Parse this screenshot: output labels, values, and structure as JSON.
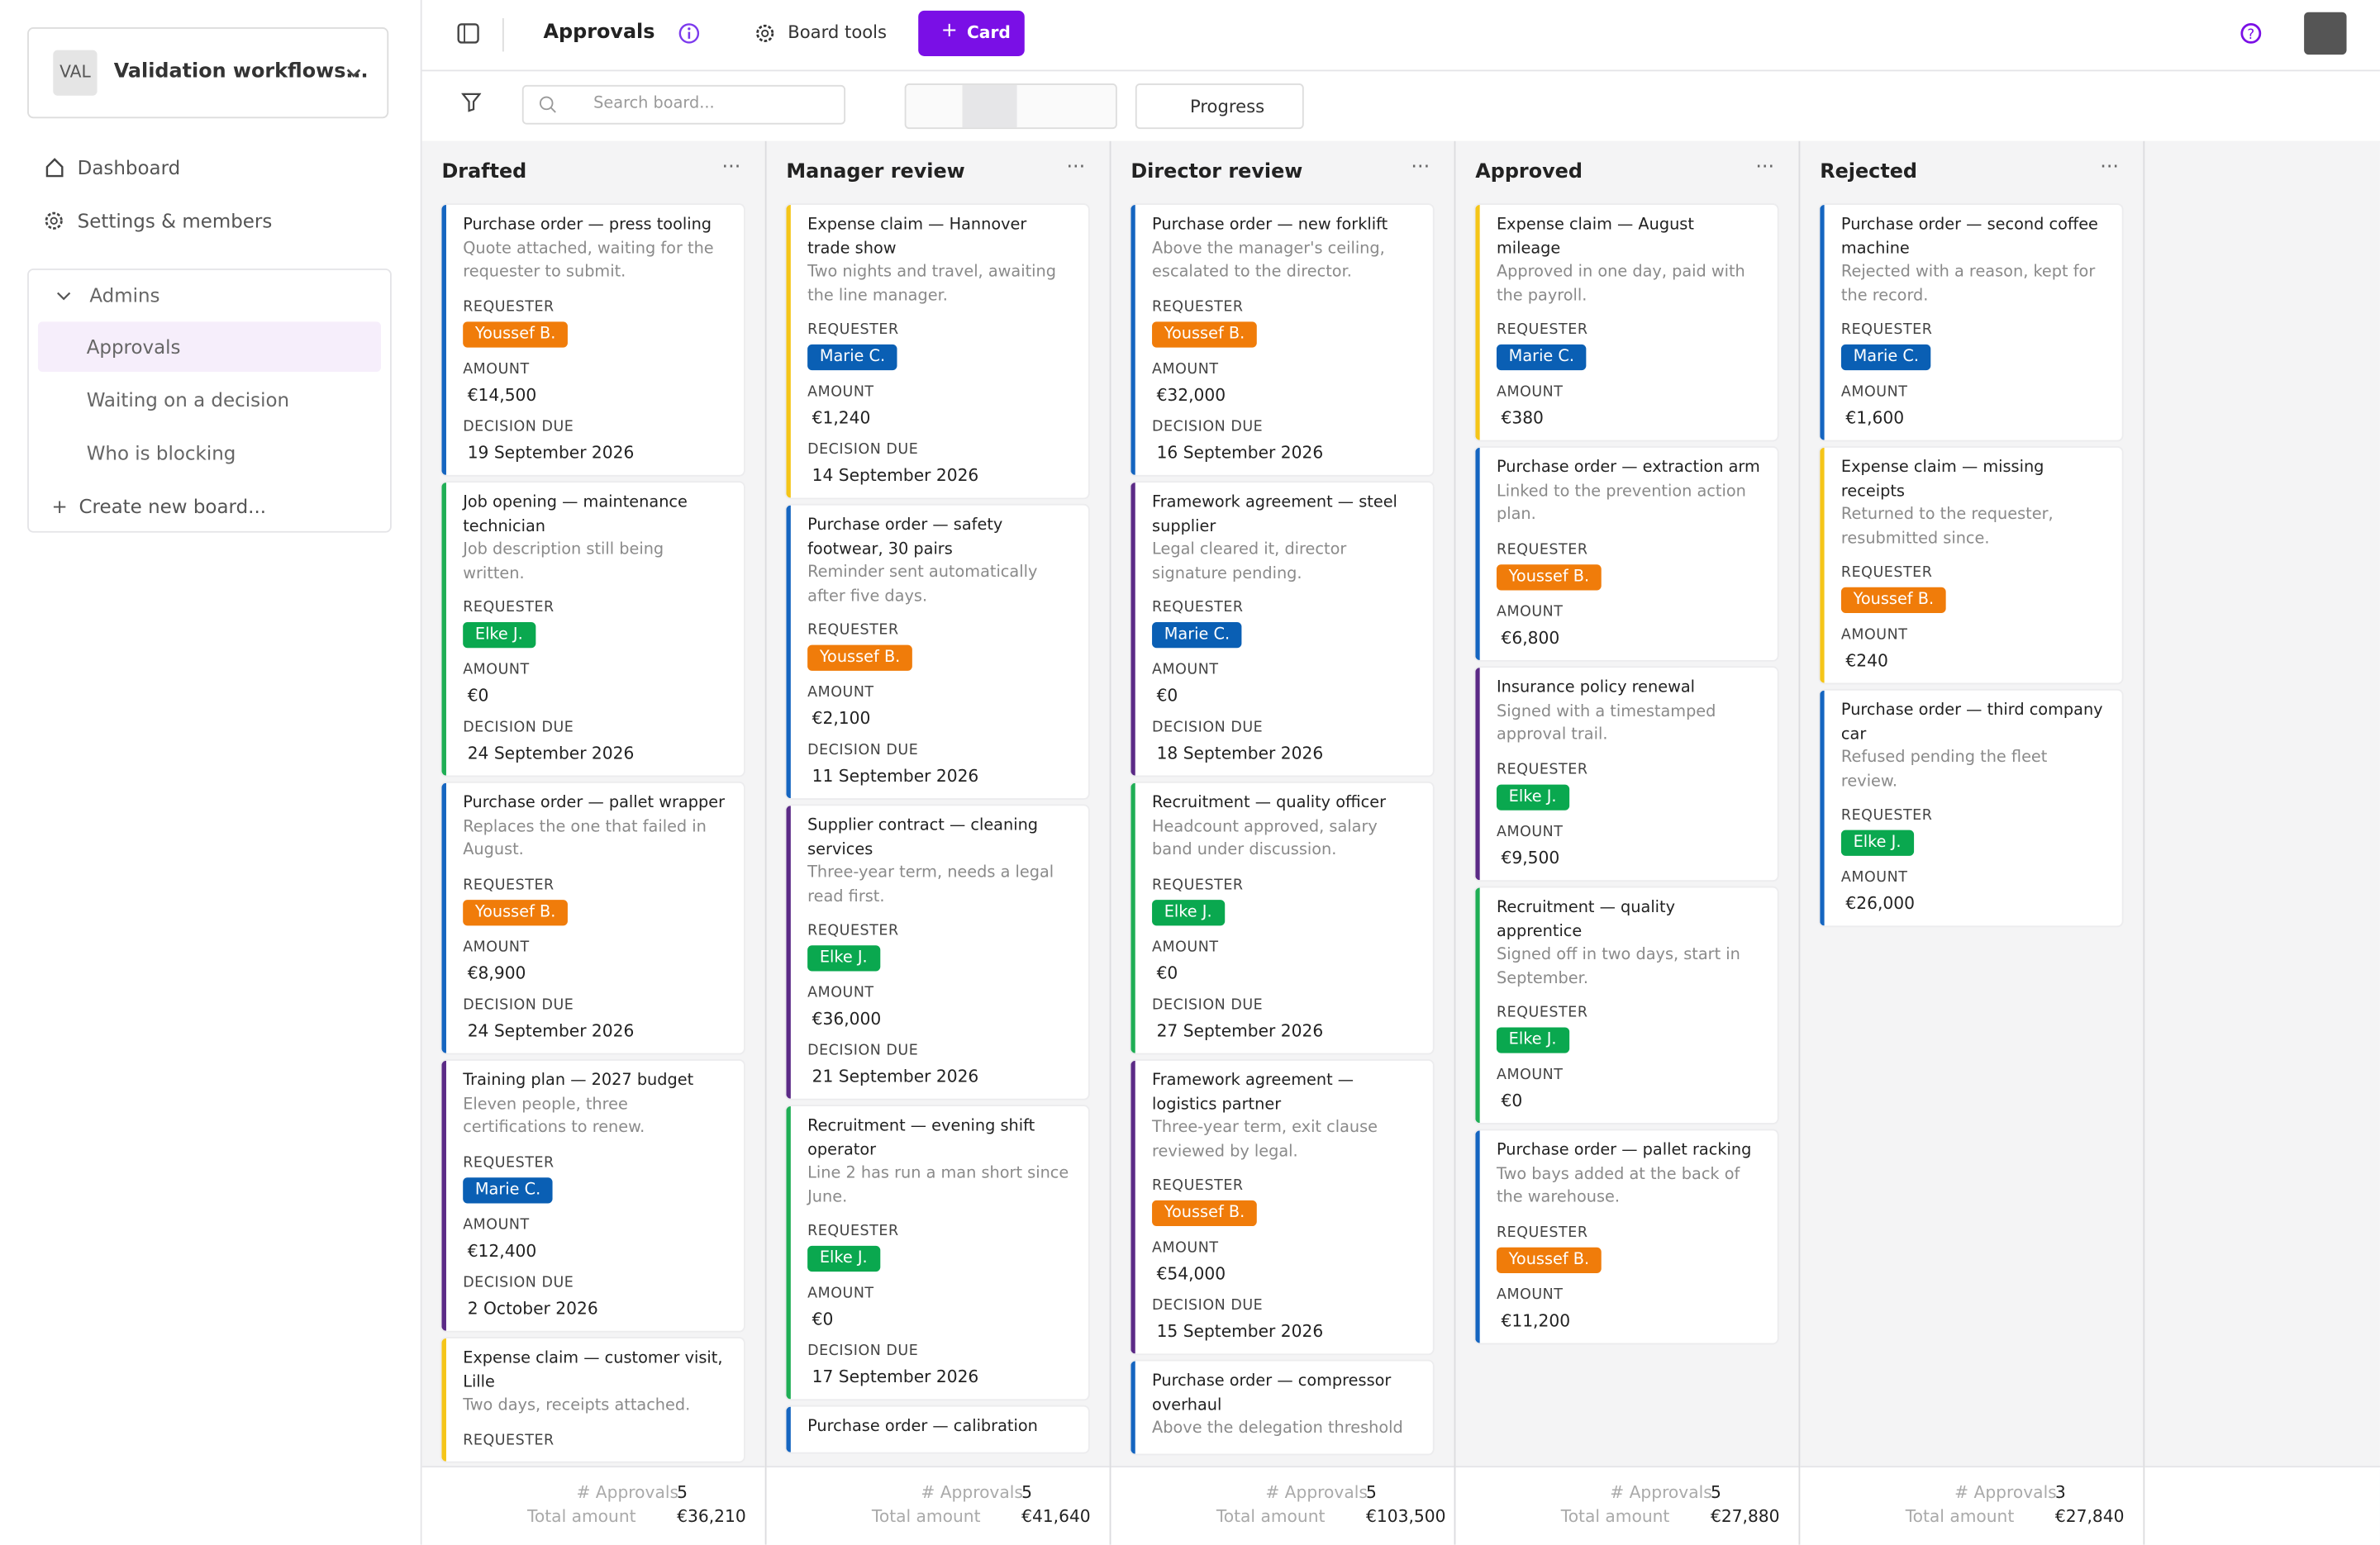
{
  "workspace": {
    "badge": "VAL",
    "name": "Validation workflows..."
  },
  "nav": [
    "Dashboard",
    "Settings & members"
  ],
  "group": {
    "title": "Admins",
    "items": [
      "Approvals",
      "Waiting on a decision",
      "Who is blocking"
    ],
    "create": "Create new board..."
  },
  "header": {
    "title": "Approvals",
    "board_tools": "Board tools",
    "add_card": "Card"
  },
  "toolbar": {
    "search_placeholder": "Search board...",
    "group_by": "Progress"
  },
  "columns": [
    {
      "name": "Drafted",
      "footer": {
        "count_label": "# Approvals",
        "count": "5",
        "total_label": "Total amount",
        "total": "€36,210"
      },
      "cards": [
        {
          "title": "Purchase order — press tooling",
          "description": "Quote attached, waiting for the requester to submit.",
          "accent": "#1565c0",
          "fields": [
            {
              "label": "REQUESTER",
              "person": "Youssef B.",
              "color": "#f07c0a"
            },
            {
              "label": "AMOUNT",
              "value": "€14,500"
            },
            {
              "label": "DECISION DUE",
              "value": "19 September 2026"
            }
          ]
        },
        {
          "title": "Job opening — maintenance technician",
          "description": "Job description still being written.",
          "accent": "#1fae55",
          "fields": [
            {
              "label": "REQUESTER",
              "person": "Elke J.",
              "color": "#0aa84f"
            },
            {
              "label": "AMOUNT",
              "value": "€0"
            },
            {
              "label": "DECISION DUE",
              "value": "24 September 2026"
            }
          ]
        },
        {
          "title": "Purchase order — pallet wrapper",
          "description": "Replaces the one that failed in August.",
          "accent": "#1565c0",
          "fields": [
            {
              "label": "REQUESTER",
              "person": "Youssef B.",
              "color": "#f07c0a"
            },
            {
              "label": "AMOUNT",
              "value": "€8,900"
            },
            {
              "label": "DECISION DUE",
              "value": "24 September 2026"
            }
          ]
        },
        {
          "title": "Training plan — 2027 budget",
          "description": "Eleven people, three certifications to renew.",
          "accent": "#5b2a86",
          "fields": [
            {
              "label": "REQUESTER",
              "person": "Marie C.",
              "color": "#0a5fb4"
            },
            {
              "label": "AMOUNT",
              "value": "€12,400"
            },
            {
              "label": "DECISION DUE",
              "value": "2 October 2026"
            }
          ]
        },
        {
          "title": "Expense claim — customer visit, Lille",
          "description": "Two days, receipts attached.",
          "accent": "#f5c518",
          "fields": [
            {
              "label": "REQUESTER"
            }
          ]
        }
      ]
    },
    {
      "name": "Manager review",
      "footer": {
        "count_label": "# Approvals",
        "count": "5",
        "total_label": "Total amount",
        "total": "€41,640"
      },
      "cards": [
        {
          "title": "Expense claim — Hannover trade show",
          "description": "Two nights and travel, awaiting the line manager.",
          "accent": "#f5c518",
          "fields": [
            {
              "label": "REQUESTER",
              "person": "Marie C.",
              "color": "#0a5fb4"
            },
            {
              "label": "AMOUNT",
              "value": "€1,240"
            },
            {
              "label": "DECISION DUE",
              "value": "14 September 2026"
            }
          ]
        },
        {
          "title": "Purchase order — safety footwear, 30 pairs",
          "description": "Reminder sent automatically after five days.",
          "accent": "#1565c0",
          "fields": [
            {
              "label": "REQUESTER",
              "person": "Youssef B.",
              "color": "#f07c0a"
            },
            {
              "label": "AMOUNT",
              "value": "€2,100"
            },
            {
              "label": "DECISION DUE",
              "value": "11 September 2026"
            }
          ]
        },
        {
          "title": "Supplier contract — cleaning services",
          "description": "Three-year term, needs a legal read first.",
          "accent": "#5b2a86",
          "fields": [
            {
              "label": "REQUESTER",
              "person": "Elke J.",
              "color": "#0aa84f"
            },
            {
              "label": "AMOUNT",
              "value": "€36,000"
            },
            {
              "label": "DECISION DUE",
              "value": "21 September 2026"
            }
          ]
        },
        {
          "title": "Recruitment — evening shift operator",
          "description": "Line 2 has run a man short since June.",
          "accent": "#1fae55",
          "fields": [
            {
              "label": "REQUESTER",
              "person": "Elke J.",
              "color": "#0aa84f"
            },
            {
              "label": "AMOUNT",
              "value": "€0"
            },
            {
              "label": "DECISION DUE",
              "value": "17 September 2026"
            }
          ]
        },
        {
          "title": "Purchase order — calibration",
          "accent": "#1565c0",
          "fields": []
        }
      ]
    },
    {
      "name": "Director review",
      "footer": {
        "count_label": "# Approvals",
        "count": "5",
        "total_label": "Total amount",
        "total": "€103,500"
      },
      "cards": [
        {
          "title": "Purchase order — new forklift",
          "description": "Above the manager's ceiling, escalated to the director.",
          "accent": "#1565c0",
          "fields": [
            {
              "label": "REQUESTER",
              "person": "Youssef B.",
              "color": "#f07c0a"
            },
            {
              "label": "AMOUNT",
              "value": "€32,000"
            },
            {
              "label": "DECISION DUE",
              "value": "16 September 2026"
            }
          ]
        },
        {
          "title": "Framework agreement — steel supplier",
          "description": "Legal cleared it, director signature pending.",
          "accent": "#5b2a86",
          "fields": [
            {
              "label": "REQUESTER",
              "person": "Marie C.",
              "color": "#0a5fb4"
            },
            {
              "label": "AMOUNT",
              "value": "€0"
            },
            {
              "label": "DECISION DUE",
              "value": "18 September 2026"
            }
          ]
        },
        {
          "title": "Recruitment — quality officer",
          "description": "Headcount approved, salary band under discussion.",
          "accent": "#1fae55",
          "fields": [
            {
              "label": "REQUESTER",
              "person": "Elke J.",
              "color": "#0aa84f"
            },
            {
              "label": "AMOUNT",
              "value": "€0"
            },
            {
              "label": "DECISION DUE",
              "value": "27 September 2026"
            }
          ]
        },
        {
          "title": "Framework agreement — logistics partner",
          "description": "Three-year term, exit clause reviewed by legal.",
          "accent": "#5b2a86",
          "fields": [
            {
              "label": "REQUESTER",
              "person": "Youssef B.",
              "color": "#f07c0a"
            },
            {
              "label": "AMOUNT",
              "value": "€54,000"
            },
            {
              "label": "DECISION DUE",
              "value": "15 September 2026"
            }
          ]
        },
        {
          "title": "Purchase order — compressor overhaul",
          "description": "Above the delegation threshold",
          "accent": "#1565c0",
          "fields": []
        }
      ]
    },
    {
      "name": "Approved",
      "footer": {
        "count_label": "# Approvals",
        "count": "5",
        "total_label": "Total amount",
        "total": "€27,880"
      },
      "cards": [
        {
          "title": "Expense claim — August mileage",
          "description": "Approved in one day, paid with the payroll.",
          "accent": "#f5c518",
          "fields": [
            {
              "label": "REQUESTER",
              "person": "Marie C.",
              "color": "#0a5fb4"
            },
            {
              "label": "AMOUNT",
              "value": "€380"
            }
          ]
        },
        {
          "title": "Purchase order — extraction arm",
          "description": "Linked to the prevention action plan.",
          "accent": "#1565c0",
          "fields": [
            {
              "label": "REQUESTER",
              "person": "Youssef B.",
              "color": "#f07c0a"
            },
            {
              "label": "AMOUNT",
              "value": "€6,800"
            }
          ]
        },
        {
          "title": "Insurance policy renewal",
          "description": "Signed with a timestamped approval trail.",
          "accent": "#5b2a86",
          "fields": [
            {
              "label": "REQUESTER",
              "person": "Elke J.",
              "color": "#0aa84f"
            },
            {
              "label": "AMOUNT",
              "value": "€9,500"
            }
          ]
        },
        {
          "title": "Recruitment — quality apprentice",
          "description": "Signed off in two days, start in September.",
          "accent": "#1fae55",
          "fields": [
            {
              "label": "REQUESTER",
              "person": "Elke J.",
              "color": "#0aa84f"
            },
            {
              "label": "AMOUNT",
              "value": "€0"
            }
          ]
        },
        {
          "title": "Purchase order — pallet racking",
          "description": "Two bays added at the back of the warehouse.",
          "accent": "#1565c0",
          "fields": [
            {
              "label": "REQUESTER",
              "person": "Youssef B.",
              "color": "#f07c0a"
            },
            {
              "label": "AMOUNT",
              "value": "€11,200"
            }
          ]
        }
      ]
    },
    {
      "name": "Rejected",
      "footer": {
        "count_label": "# Approvals",
        "count": "3",
        "total_label": "Total amount",
        "total": "€27,840"
      },
      "cards": [
        {
          "title": "Purchase order — second coffee machine",
          "description": "Rejected with a reason, kept for the record.",
          "accent": "#1565c0",
          "fields": [
            {
              "label": "REQUESTER",
              "person": "Marie C.",
              "color": "#0a5fb4"
            },
            {
              "label": "AMOUNT",
              "value": "€1,600"
            }
          ]
        },
        {
          "title": "Expense claim — missing receipts",
          "description": "Returned to the requester, resubmitted since.",
          "accent": "#f5c518",
          "fields": [
            {
              "label": "REQUESTER",
              "person": "Youssef B.",
              "color": "#f07c0a"
            },
            {
              "label": "AMOUNT",
              "value": "€240"
            }
          ]
        },
        {
          "title": "Purchase order — third company car",
          "description": "Refused pending the fleet review.",
          "accent": "#1565c0",
          "fields": [
            {
              "label": "REQUESTER",
              "person": "Elke J.",
              "color": "#0aa84f"
            },
            {
              "label": "AMOUNT",
              "value": "€26,000"
            }
          ]
        }
      ]
    }
  ]
}
